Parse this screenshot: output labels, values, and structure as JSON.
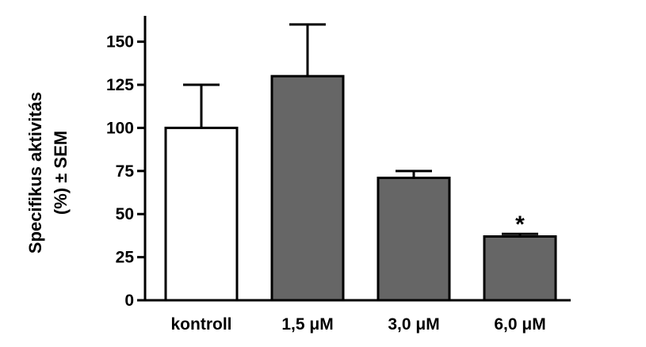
{
  "chart_data": {
    "type": "bar",
    "categories": [
      "kontroll",
      "1,5 μM",
      "3,0 μM",
      "6,0 μM"
    ],
    "values": [
      100,
      130,
      71,
      37
    ],
    "errors": [
      25,
      30,
      4,
      1.5
    ],
    "bar_colors": [
      "#ffffff",
      "#666666",
      "#666666",
      "#666666"
    ],
    "annotations": [
      "",
      "",
      "",
      "*"
    ],
    "ylabel_line1": "Specifikus aktivitás",
    "ylabel_line2": "(%) ± SEM",
    "yticks": [
      "0",
      "25",
      "50",
      "75",
      "100",
      "125",
      "150"
    ],
    "ylim": [
      0,
      165
    ],
    "grid": false,
    "legend": "none"
  }
}
